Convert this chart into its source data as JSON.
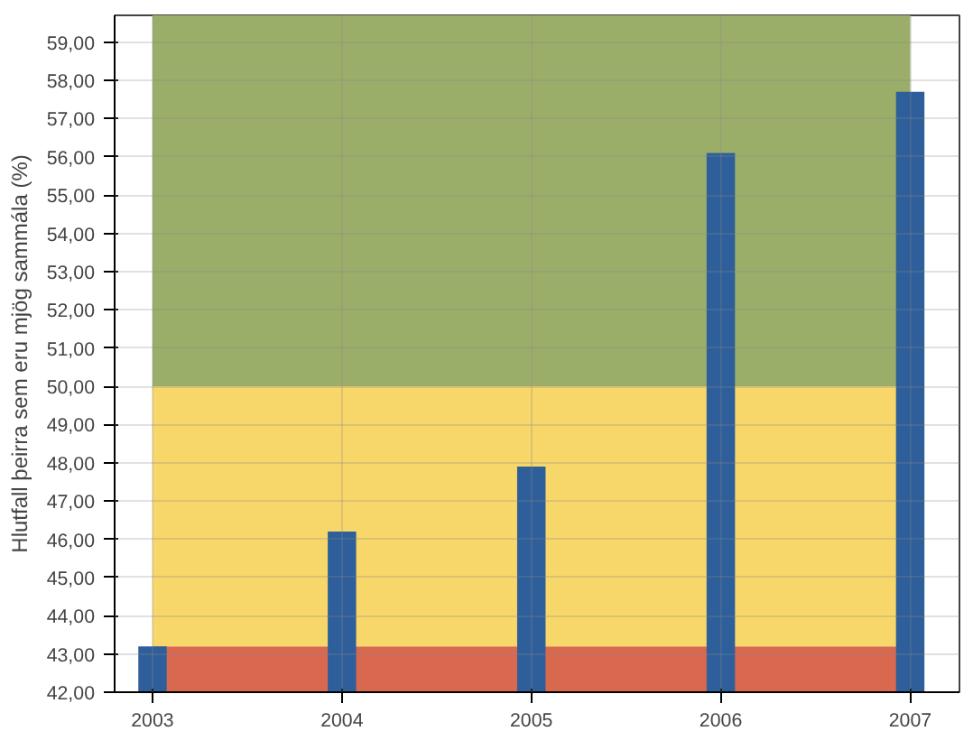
{
  "chart_data": {
    "type": "bar",
    "ylabel": "Hlutfall þeirra sem eru mjög sammála (%)",
    "x": [
      2003,
      2004,
      2005,
      2006,
      2007
    ],
    "values": [
      43.2,
      46.2,
      47.9,
      56.1,
      57.7
    ],
    "color": "#2e5f9a",
    "xlim": [
      2002.8,
      2007.26
    ],
    "xticks": [
      2003,
      2004,
      2005,
      2006,
      2007
    ],
    "ylim": [
      42,
      59.7
    ],
    "yticks": [
      {
        "value": 42,
        "label": "42,00"
      },
      {
        "value": 43,
        "label": "43,00"
      },
      {
        "value": 44,
        "label": "44,00"
      },
      {
        "value": 45,
        "label": "45,00"
      },
      {
        "value": 46,
        "label": "46,00"
      },
      {
        "value": 47,
        "label": "47,00"
      },
      {
        "value": 48,
        "label": "48,00"
      },
      {
        "value": 49,
        "label": "49,00"
      },
      {
        "value": 50,
        "label": "50,00"
      },
      {
        "value": 51,
        "label": "51,00"
      },
      {
        "value": 52,
        "label": "52,00"
      },
      {
        "value": 53,
        "label": "53,00"
      },
      {
        "value": 54,
        "label": "54,00"
      },
      {
        "value": 55,
        "label": "55,00"
      },
      {
        "value": 56,
        "label": "56,00"
      },
      {
        "value": 57,
        "label": "57,00"
      },
      {
        "value": 58,
        "label": "58,00"
      },
      {
        "value": 59,
        "label": "59,00"
      }
    ],
    "bands": [
      {
        "axis": "y",
        "from": 42,
        "to": 43.2,
        "color": "#d9694e"
      },
      {
        "axis": "y",
        "from": 43.2,
        "to": 50,
        "color": "#f7d66a"
      },
      {
        "axis": "y",
        "from": 50,
        "to": 59.7,
        "color": "#9aae6a"
      }
    ],
    "grid": true
  }
}
